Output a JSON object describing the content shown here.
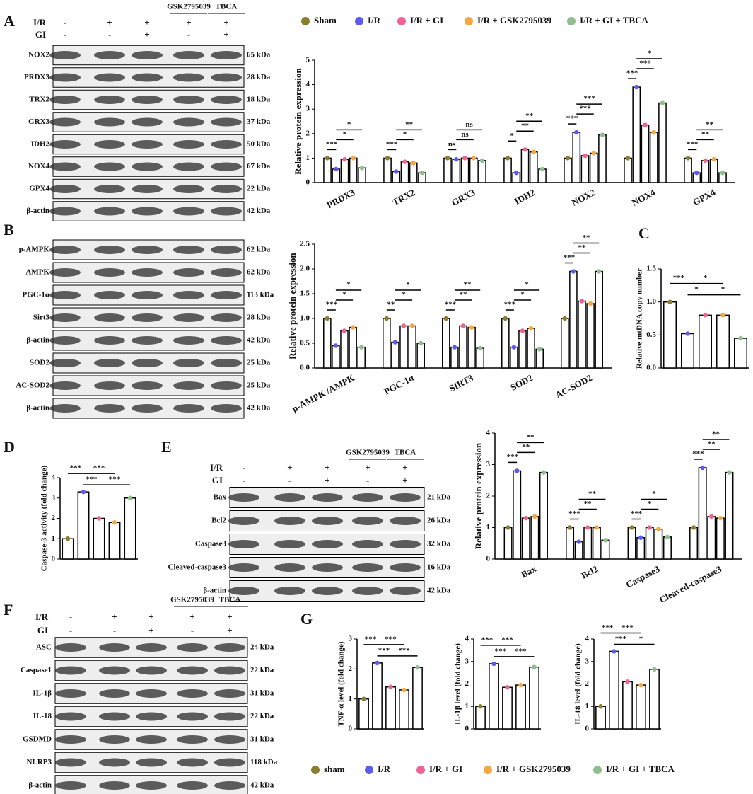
{
  "panels": [
    "A",
    "B",
    "C",
    "D",
    "E",
    "F",
    "G"
  ],
  "legend_top": [
    {
      "name": "Sham",
      "color": "#8b7d2e"
    },
    {
      "name": "I/R",
      "color": "#5b5bf0"
    },
    {
      "name": "I/R + GI",
      "color": "#f06292"
    },
    {
      "name": "I/R + GSK2795039",
      "color": "#f5a742"
    },
    {
      "name": "I/R + GI + TBCA",
      "color": "#8fbf8f"
    }
  ],
  "legend_bottom": [
    {
      "name": "sham",
      "color": "#8b7d2e"
    },
    {
      "name": "I/R",
      "color": "#5b5bf0"
    },
    {
      "name": "I/R + GI",
      "color": "#f06292"
    },
    {
      "name": "I/R + GSK2795039",
      "color": "#f5a742"
    },
    {
      "name": "I/R + GI + TBCA",
      "color": "#8fbf8f"
    }
  ],
  "blots": [
    {
      "header": {
        "top": [
          "GSK2795039",
          "TBCA"
        ],
        "rows": [
          {
            "label": "I/R",
            "signs": [
              "-",
              "+",
              "+",
              "+",
              "+"
            ]
          },
          {
            "label": "GI",
            "signs": [
              "-",
              "-",
              "+",
              "-",
              "+"
            ]
          }
        ]
      },
      "proteins": [
        {
          "name": "NOX2",
          "size": "65 kDa"
        },
        {
          "name": "PRDX3",
          "size": "28 kDa"
        },
        {
          "name": "TRX2",
          "size": "18 kDa"
        },
        {
          "name": "GRX3",
          "size": "37 kDa"
        },
        {
          "name": "IDH2",
          "size": "50 kDa"
        },
        {
          "name": "NOX4",
          "size": "67 kDa"
        },
        {
          "name": "GPX4",
          "size": "22 kDa"
        },
        {
          "name": "β-actin",
          "size": "42 kDa"
        }
      ]
    },
    {
      "proteins": [
        {
          "name": "p-AMPK",
          "size": "62 kDa"
        },
        {
          "name": "AMPK",
          "size": "62 kDa"
        },
        {
          "name": "PGC-1α",
          "size": "113 kDa"
        },
        {
          "name": "Sirt3",
          "size": "28 kDa"
        },
        {
          "name": "β-actin",
          "size": "42 kDa"
        },
        {
          "name": "SOD2",
          "size": "25 kDa"
        },
        {
          "name": "AC-SOD2",
          "size": "25 kDa"
        },
        {
          "name": "β-actin",
          "size": "42 kDa"
        }
      ]
    },
    {
      "header": {
        "top": [
          "GSK2795039",
          "TBCA"
        ],
        "rows": [
          {
            "label": "I/R",
            "signs": [
              "-",
              "+",
              "+",
              "+",
              "+"
            ]
          },
          {
            "label": "GI",
            "signs": [
              "-",
              "-",
              "+",
              "-",
              "+"
            ]
          }
        ]
      },
      "proteins": [
        {
          "name": "Bax",
          "size": "21 kDa"
        },
        {
          "name": "Bcl2",
          "size": "26 kDa"
        },
        {
          "name": "Caspase3",
          "size": "32 kDa"
        },
        {
          "name": "Cleaved-caspase3",
          "size": "16 kDa"
        },
        {
          "name": "β-actin",
          "size": "42 kDa"
        }
      ]
    },
    {
      "header": {
        "top": [
          "GSK2795039",
          "TBCA"
        ],
        "rows": [
          {
            "label": "I/R",
            "signs": [
              "-",
              "+",
              "+",
              "+",
              "+"
            ]
          },
          {
            "label": "GI",
            "signs": [
              "-",
              "-",
              "+",
              "-",
              "+"
            ]
          }
        ]
      },
      "proteins": [
        {
          "name": "ASC",
          "size": "24 kDa"
        },
        {
          "name": "Caspase1",
          "size": "22 kDa"
        },
        {
          "name": "IL-1β",
          "size": "31 kDa"
        },
        {
          "name": "IL-18",
          "size": "22 kDa"
        },
        {
          "name": "GSDMD",
          "size": "31 kDa"
        },
        {
          "name": "NLRP3",
          "size": "118 kDa"
        },
        {
          "name": "β-actin",
          "size": "42 kDa"
        }
      ]
    }
  ],
  "chart_data": [
    {
      "type": "bar",
      "ylabel": "Relative protein expression",
      "categories": [
        "PRDX3",
        "TRX2",
        "GRX3",
        "IDH2",
        "NOX2",
        "NOX4",
        "GPX4"
      ],
      "series": [
        {
          "values": [
            1,
            1,
            1,
            1,
            1,
            1,
            1
          ]
        },
        {
          "values": [
            0.55,
            0.45,
            0.95,
            0.4,
            2.05,
            3.9,
            0.4
          ]
        },
        {
          "values": [
            0.95,
            0.85,
            1.0,
            1.35,
            1.1,
            2.35,
            0.9
          ]
        },
        {
          "values": [
            1.0,
            0.8,
            1.0,
            1.25,
            1.2,
            2.05,
            0.95
          ]
        },
        {
          "values": [
            0.6,
            0.4,
            0.9,
            0.55,
            1.95,
            3.25,
            0.4
          ]
        }
      ],
      "ylim": [
        0,
        5
      ],
      "yticks": [
        0,
        1,
        2,
        3,
        4,
        5
      ],
      "significance": [
        [
          "***",
          "*",
          "*"
        ],
        [
          "***",
          "*",
          "**"
        ],
        [
          "ns",
          "ns",
          "ns"
        ],
        [
          "*",
          "**",
          "**"
        ],
        [
          "***",
          "***",
          "***"
        ],
        [
          "***",
          "***",
          "*"
        ],
        [
          "***",
          "**",
          "**"
        ]
      ]
    },
    {
      "type": "bar",
      "ylabel": "Relative protein expression",
      "categories": [
        "p-AMPK /AMPK",
        "PGC-1α",
        "SIRT3",
        "SOD2",
        "AC-SOD2"
      ],
      "series": [
        {
          "values": [
            1,
            1,
            1,
            1,
            1
          ]
        },
        {
          "values": [
            0.45,
            0.52,
            0.42,
            0.42,
            1.95
          ]
        },
        {
          "values": [
            0.75,
            0.85,
            0.85,
            0.75,
            1.35
          ]
        },
        {
          "values": [
            0.82,
            0.85,
            0.82,
            0.8,
            1.3
          ]
        },
        {
          "values": [
            0.42,
            0.5,
            0.4,
            0.38,
            1.95
          ]
        }
      ],
      "ylim": [
        0,
        2.5
      ],
      "yticks": [
        {
          "value": 0,
          "label": "0.0"
        },
        {
          "value": 0.5,
          "label": "0.5"
        },
        {
          "value": 1,
          "label": "1.0"
        },
        {
          "value": 1.5,
          "label": "1.5"
        },
        {
          "value": 2,
          "label": "2.0"
        },
        {
          "value": 2.5,
          "label": "2.5"
        }
      ],
      "significance": [
        [
          "***",
          "*",
          "*"
        ],
        [
          "**",
          "*",
          "*"
        ],
        [
          "***",
          "**",
          "**"
        ],
        [
          "***",
          "*",
          "*"
        ],
        [
          "***",
          "**",
          "**"
        ]
      ]
    },
    {
      "type": "bar",
      "ylabel": "Relative mtDNA copy number",
      "values": [
        1.0,
        0.52,
        0.8,
        0.8,
        0.45
      ],
      "ylim": [
        0,
        1.5
      ],
      "yticks": [
        {
          "value": 0,
          "label": "0.0"
        },
        {
          "value": 0.5,
          "label": "0.5"
        },
        {
          "value": 1,
          "label": "1.0"
        },
        {
          "value": 1.5,
          "label": "1.5"
        }
      ],
      "significance": [
        "***",
        "*",
        "*",
        "*"
      ]
    },
    {
      "type": "bar",
      "ylabel": "Caspase-3 activity (fold change)",
      "values": [
        1.0,
        3.3,
        2.0,
        1.8,
        3.0
      ],
      "ylim": [
        0,
        4
      ],
      "yticks": [
        0,
        1,
        2,
        3,
        4
      ],
      "significance": [
        "***",
        "***",
        "***",
        "***"
      ]
    },
    {
      "type": "bar",
      "ylabel": "Relative protein expression",
      "categories": [
        "Bax",
        "Bcl2",
        "Caspase3",
        "Cleaved-caspase3"
      ],
      "series": [
        {
          "values": [
            1,
            1,
            1,
            1
          ]
        },
        {
          "values": [
            2.8,
            0.55,
            0.68,
            2.9
          ]
        },
        {
          "values": [
            1.3,
            1.0,
            1.0,
            1.35
          ]
        },
        {
          "values": [
            1.35,
            1.0,
            0.95,
            1.3
          ]
        },
        {
          "values": [
            2.75,
            0.6,
            0.7,
            2.75
          ]
        }
      ],
      "ylim": [
        0,
        4
      ],
      "yticks": [
        0,
        1,
        2,
        3,
        4
      ],
      "significance": [
        [
          "***",
          "**",
          "**"
        ],
        [
          "***",
          "**",
          "**"
        ],
        [
          "***",
          "*",
          "*"
        ],
        [
          "***",
          "**",
          "**"
        ]
      ]
    },
    {
      "type": "bar",
      "ylabel": "TNF-α level (fold change)",
      "values": [
        1.0,
        2.2,
        1.4,
        1.3,
        2.05
      ],
      "ylim": [
        0,
        3
      ],
      "yticks": [
        0,
        1,
        2,
        3
      ],
      "significance": [
        "***",
        "***",
        "***",
        "***"
      ]
    },
    {
      "type": "bar",
      "ylabel": "IL-1β level (fold change)",
      "values": [
        1.0,
        2.9,
        1.85,
        1.95,
        2.75
      ],
      "ylim": [
        0,
        4
      ],
      "yticks": [
        0,
        1,
        2,
        3,
        4
      ],
      "significance": [
        "***",
        "***",
        "***",
        "***"
      ]
    },
    {
      "type": "bar",
      "ylabel": "IL-18 level (fold change)",
      "values": [
        1.0,
        3.45,
        2.1,
        1.95,
        2.65
      ],
      "ylim": [
        0,
        4
      ],
      "yticks": [
        0,
        1,
        2,
        3,
        4
      ],
      "significance": [
        "***",
        "***",
        "***",
        "*"
      ]
    }
  ]
}
